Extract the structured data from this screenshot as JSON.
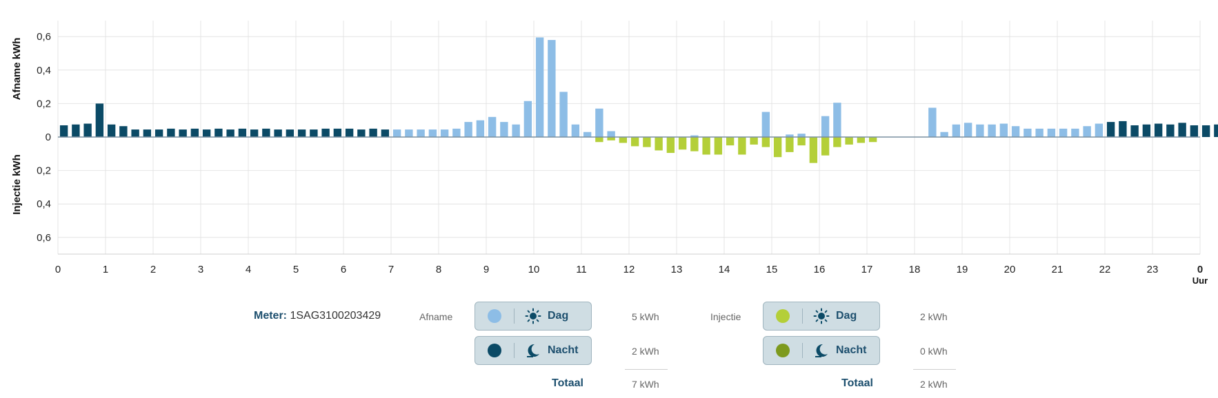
{
  "chart_data": {
    "type": "bar",
    "ylabel_top": "Afname  kWh",
    "ylabel_bottom": "Injectie  kWh",
    "xlabel": "Uur",
    "ylim": [
      -0.6,
      0.6
    ],
    "y_ticks": [
      "0,6",
      "0,4",
      "0,2",
      "0",
      "0,2",
      "0,4",
      "0,6"
    ],
    "x_ticks": [
      "0",
      "1",
      "2",
      "3",
      "4",
      "5",
      "6",
      "7",
      "8",
      "9",
      "10",
      "11",
      "12",
      "13",
      "14",
      "15",
      "16",
      "17",
      "18",
      "19",
      "20",
      "21",
      "22",
      "23",
      "0"
    ],
    "interval_hours": 0.25,
    "series": [
      {
        "name": "Afname",
        "values": [
          0.07,
          0.075,
          0.08,
          0.2,
          0.075,
          0.065,
          0.045,
          0.045,
          0.045,
          0.05,
          0.045,
          0.05,
          0.045,
          0.05,
          0.045,
          0.05,
          0.045,
          0.05,
          0.045,
          0.045,
          0.045,
          0.045,
          0.05,
          0.05,
          0.05,
          0.045,
          0.05,
          0.045,
          0.045,
          0.045,
          0.045,
          0.045,
          0.045,
          0.05,
          0.09,
          0.1,
          0.12,
          0.09,
          0.075,
          0.215,
          0.595,
          0.58,
          0.27,
          0.075,
          0.03,
          0.17,
          0.035,
          0.0,
          0.0,
          0.0,
          0.0,
          0.0,
          0.0,
          0.01,
          0.0,
          0.0,
          0.0,
          0.0,
          0.0,
          0.15,
          0.0,
          0.015,
          0.02,
          0.0,
          0.125,
          0.205,
          0.0,
          0.0,
          0.0,
          0.0,
          0.0,
          0.0,
          0.0,
          0.175,
          0.03,
          0.075,
          0.085,
          0.075,
          0.075,
          0.08,
          0.065,
          0.05,
          0.05,
          0.05,
          0.05,
          0.05,
          0.065,
          0.08,
          0.09,
          0.095,
          0.07,
          0.075,
          0.08,
          0.075,
          0.085,
          0.07,
          0.07,
          0.075,
          0.075,
          0.085,
          0.075,
          0.09,
          0.075,
          0.075
        ]
      },
      {
        "name": "Injectie",
        "values": [
          0,
          0,
          0,
          0,
          0,
          0,
          0,
          0,
          0,
          0,
          0,
          0,
          0,
          0,
          0,
          0,
          0,
          0,
          0,
          0,
          0,
          0,
          0,
          0,
          0,
          0,
          0,
          0,
          0,
          0,
          0,
          0,
          0,
          0,
          0,
          0,
          0,
          0,
          0,
          0,
          0,
          0,
          0,
          0,
          0,
          0.03,
          0.02,
          0.035,
          0.055,
          0.06,
          0.08,
          0.095,
          0.075,
          0.085,
          0.105,
          0.105,
          0.05,
          0.105,
          0.045,
          0.06,
          0.12,
          0.09,
          0.05,
          0.155,
          0.11,
          0.06,
          0.045,
          0.035,
          0.03,
          0,
          0,
          0,
          0,
          0,
          0,
          0,
          0,
          0,
          0,
          0,
          0,
          0,
          0,
          0,
          0,
          0,
          0,
          0,
          0,
          0,
          0,
          0,
          0,
          0,
          0,
          0,
          0,
          0,
          0,
          0,
          0,
          0,
          0,
          0
        ]
      }
    ],
    "day_start_hour": 7,
    "day_end_hour": 22
  },
  "colors": {
    "afname_dag": "#8dbde6",
    "afname_nacht": "#0b4a66",
    "injectie_dag": "#b4cf38",
    "injectie_nacht": "#7d9a1e",
    "grid": "#e4e4e4",
    "zero_line": "#7a8fa0",
    "pill_bg": "#cfdde3",
    "pill_text": "#1d4f6e"
  },
  "legend": {
    "meter_label": "Meter:",
    "meter_value": "1SAG3100203429",
    "afname": {
      "label": "Afname",
      "dag_label": "Dag",
      "dag_value": "5 kWh",
      "nacht_label": "Nacht",
      "nacht_value": "2 kWh",
      "totaal_label": "Totaal",
      "totaal_value": "7 kWh"
    },
    "injectie": {
      "label": "Injectie",
      "dag_label": "Dag",
      "dag_value": "2 kWh",
      "nacht_label": "Nacht",
      "nacht_value": "0 kWh",
      "totaal_label": "Totaal",
      "totaal_value": "2 kWh"
    },
    "icons": {
      "day": "sun-icon",
      "night": "moon-icon"
    }
  }
}
